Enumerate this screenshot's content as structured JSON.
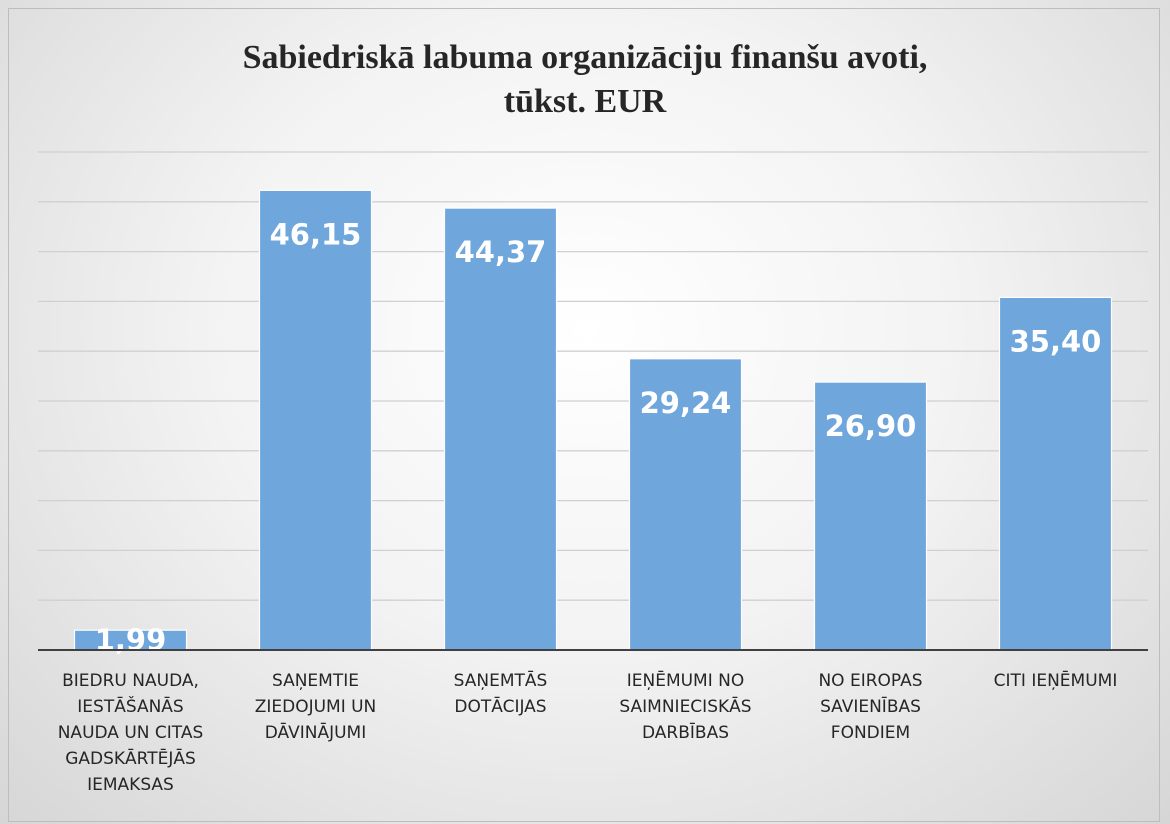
{
  "chart_data": {
    "type": "bar",
    "title": "Sabiedriskā labuma organizāciju finanšu avoti, tūkst. EUR",
    "categories": [
      "BIEDRU NAUDA, IESTĀŠANĀS NAUDA UN CITAS GADSKĀRTĒJĀS IEMAKSAS",
      "SAŅEMTIE ZIEDOJUMI UN DĀVINĀJUMI",
      "SAŅEMTĀS DOTĀCIJAS",
      "IEŅĒMUMI NO SAIMNIECISKĀS DARBĪBAS",
      "NO EIROPAS SAVIENĪBAS FONDIEM",
      "CITI IEŅĒMUMI"
    ],
    "values": [
      1.99,
      46.15,
      44.37,
      29.24,
      26.9,
      35.4
    ],
    "value_labels": [
      "1,99",
      "46,15",
      "44,37",
      "29,24",
      "26,90",
      "35,40"
    ],
    "color": "#6fa6dc",
    "ylim": [
      0,
      50
    ],
    "yticks": [
      0,
      5,
      10,
      15,
      20,
      25,
      30,
      35,
      40,
      45,
      50
    ],
    "grid": true
  }
}
